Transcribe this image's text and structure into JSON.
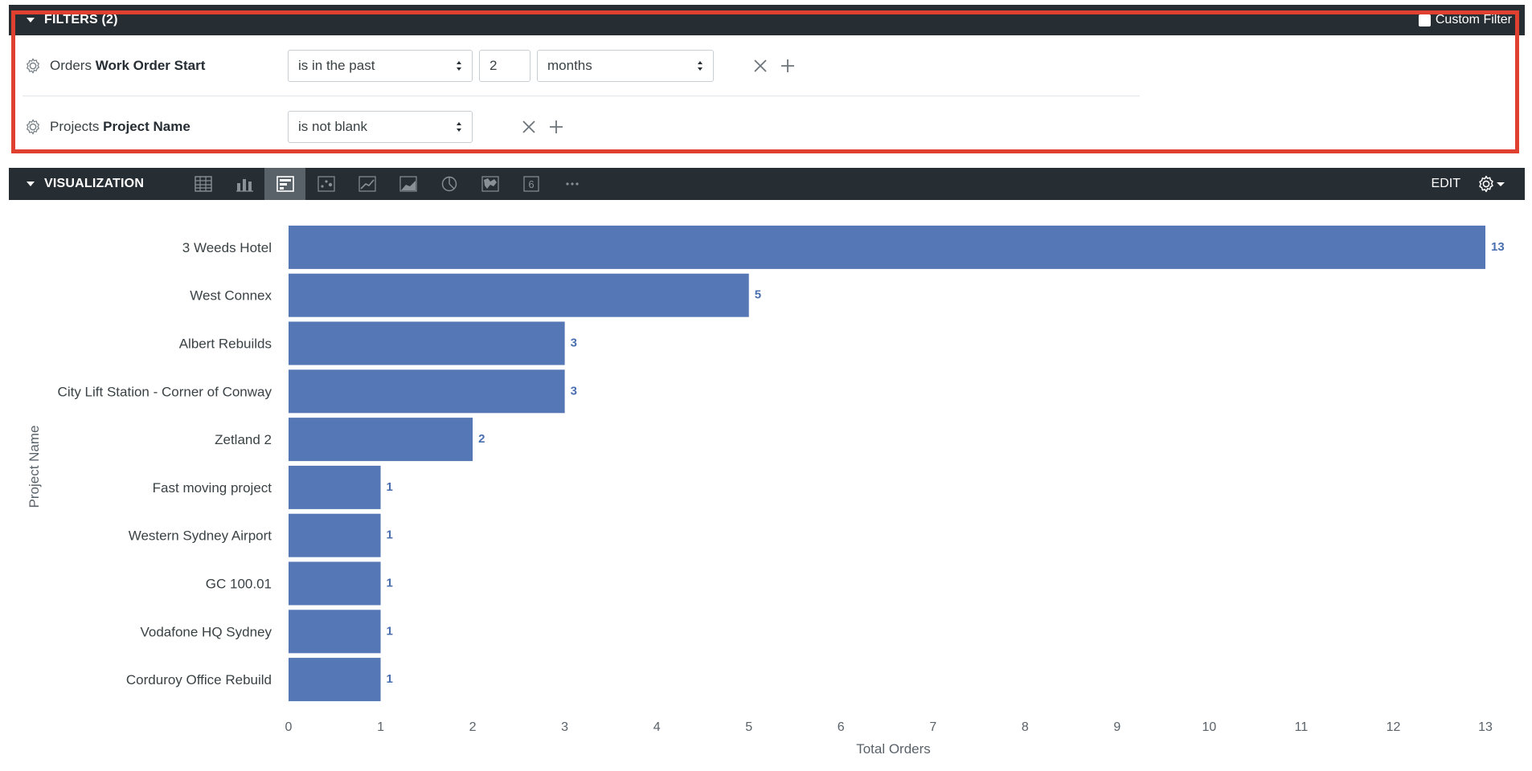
{
  "filters": {
    "title": "FILTERS (2)",
    "custom_filter_label": "Custom Filter",
    "rows": [
      {
        "view": "Orders",
        "field": "Work Order Start",
        "operator": "is in the past",
        "value": "2",
        "unit": "months"
      },
      {
        "view": "Projects",
        "field": "Project Name",
        "operator": "is not blank"
      }
    ]
  },
  "visualization": {
    "title": "VISUALIZATION",
    "edit_label": "EDIT",
    "types": [
      "table-icon",
      "column-chart-icon",
      "bar-chart-icon",
      "scatter-icon",
      "line-chart-icon",
      "area-chart-icon",
      "pie-chart-icon",
      "map-icon",
      "single-value-icon",
      "more-icon"
    ],
    "active_type": "bar-chart-icon"
  },
  "colors": {
    "bar": "#5677b5",
    "header_bg": "#262d33",
    "highlight": "#e0402f",
    "value_label": "#4a6fb0"
  },
  "chart_data": {
    "type": "bar",
    "orientation": "horizontal",
    "categories": [
      "3 Weeds Hotel",
      "West Connex",
      "Albert Rebuilds",
      "City Lift Station - Corner of Conway",
      "Zetland 2",
      "Fast moving project",
      "Western Sydney Airport",
      "GC 100.01",
      "Vodafone HQ Sydney",
      "Corduroy Office Rebuild"
    ],
    "values": [
      13,
      5,
      3,
      3,
      2,
      1,
      1,
      1,
      1,
      1
    ],
    "xlabel": "Total Orders",
    "ylabel": "Project Name",
    "xlim": [
      0,
      13
    ],
    "xticks": [
      0,
      1,
      2,
      3,
      4,
      5,
      6,
      7,
      8,
      9,
      10,
      11,
      12,
      13
    ],
    "data_labels": true,
    "grid": false
  }
}
